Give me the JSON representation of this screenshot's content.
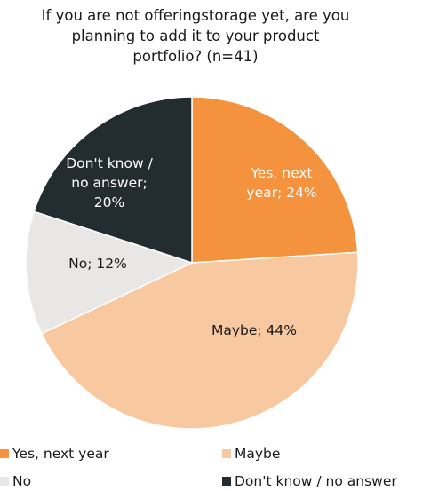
{
  "chart_data": {
    "type": "pie",
    "title_lines": [
      "If you are not offeringstorage yet, are you",
      "planning to add it to your product",
      "portfolio? (n=41)"
    ],
    "slices": [
      {
        "name": "Yes, next year",
        "value": 24,
        "color": "#F5923E",
        "label_lines": [
          "Yes, next",
          "year; 24%"
        ],
        "label_color": "#ffffff"
      },
      {
        "name": "Maybe",
        "value": 44,
        "color": "#F8C8A0",
        "label_lines": [
          "Maybe; 44%"
        ],
        "label_color": "#1a1a1a"
      },
      {
        "name": "No",
        "value": 12,
        "color": "#E9E6E6",
        "label_lines": [
          "No; 12%"
        ],
        "label_color": "#1a1a1a"
      },
      {
        "name": "Don't know / no answer",
        "value": 20,
        "color": "#232D2F",
        "label_lines": [
          "Don't know /",
          "no answer;",
          "20%"
        ],
        "label_color": "#ffffff"
      }
    ],
    "legend": {
      "position": "bottom",
      "entries": [
        "Yes, next year",
        "Maybe",
        "No",
        "Don't know / no answer"
      ]
    }
  }
}
